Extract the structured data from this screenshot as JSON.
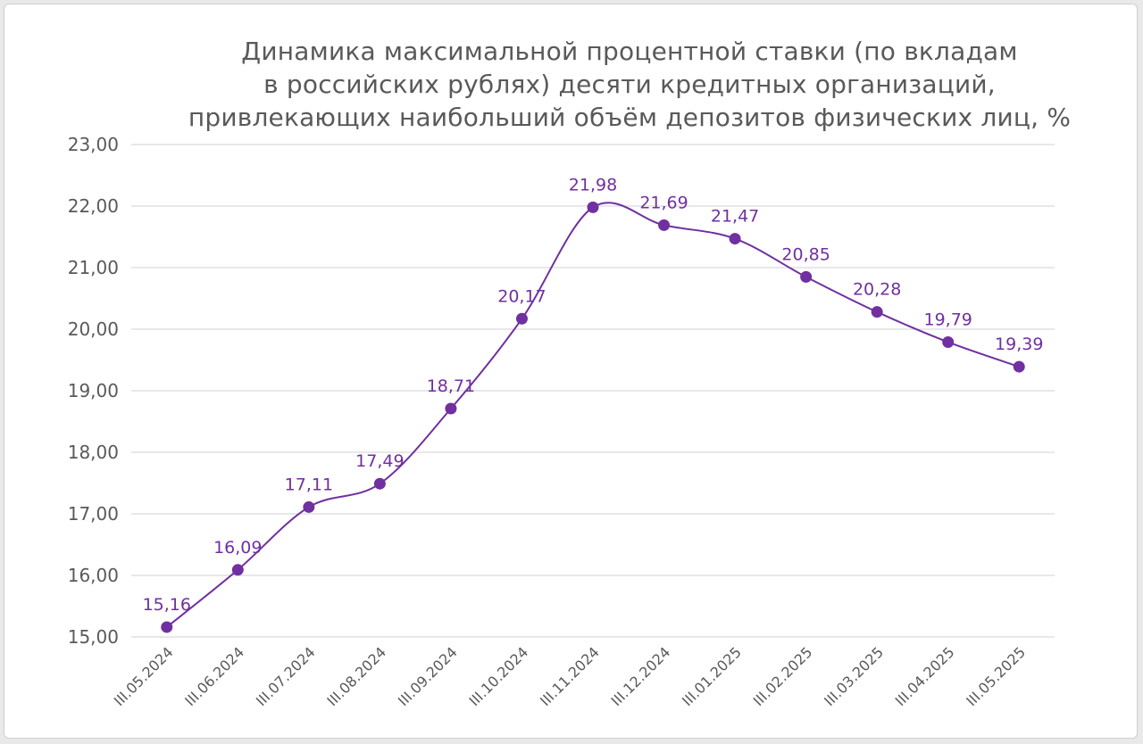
{
  "chart_data": {
    "type": "line",
    "title_lines": [
      "Динамика максимальной процентной ставки (по вкладам",
      "в российских рублях) десяти кредитных организаций,",
      "привлекающих наибольший объём депозитов физических лиц, %"
    ],
    "categories": [
      "III.05.2024",
      "III.06.2024",
      "III.07.2024",
      "III.08.2024",
      "III.09.2024",
      "III.10.2024",
      "III.11.2024",
      "III.12.2024",
      "III.01.2025",
      "III.02.2025",
      "III.03.2025",
      "III.04.2025",
      "III.05.2025"
    ],
    "values": [
      15.16,
      16.09,
      17.11,
      17.49,
      18.71,
      20.17,
      21.98,
      21.69,
      21.47,
      20.85,
      20.28,
      19.79,
      19.39
    ],
    "data_labels": [
      "15,16",
      "16,09",
      "17,11",
      "17,49",
      "18,71",
      "20,17",
      "21,98",
      "21,69",
      "21,47",
      "20,85",
      "20,28",
      "19,79",
      "19,39"
    ],
    "yticks": [
      15,
      16,
      17,
      18,
      19,
      20,
      21,
      22,
      23
    ],
    "ytick_labels": [
      "15,00",
      "16,00",
      "17,00",
      "18,00",
      "19,00",
      "20,00",
      "21,00",
      "22,00",
      "23,00"
    ],
    "ylim": [
      15,
      23
    ],
    "grid": true,
    "smooth": true,
    "legend": "none",
    "colors": {
      "series": "#7030a0",
      "grid": "#d9d9d9",
      "text": "#595959"
    }
  }
}
